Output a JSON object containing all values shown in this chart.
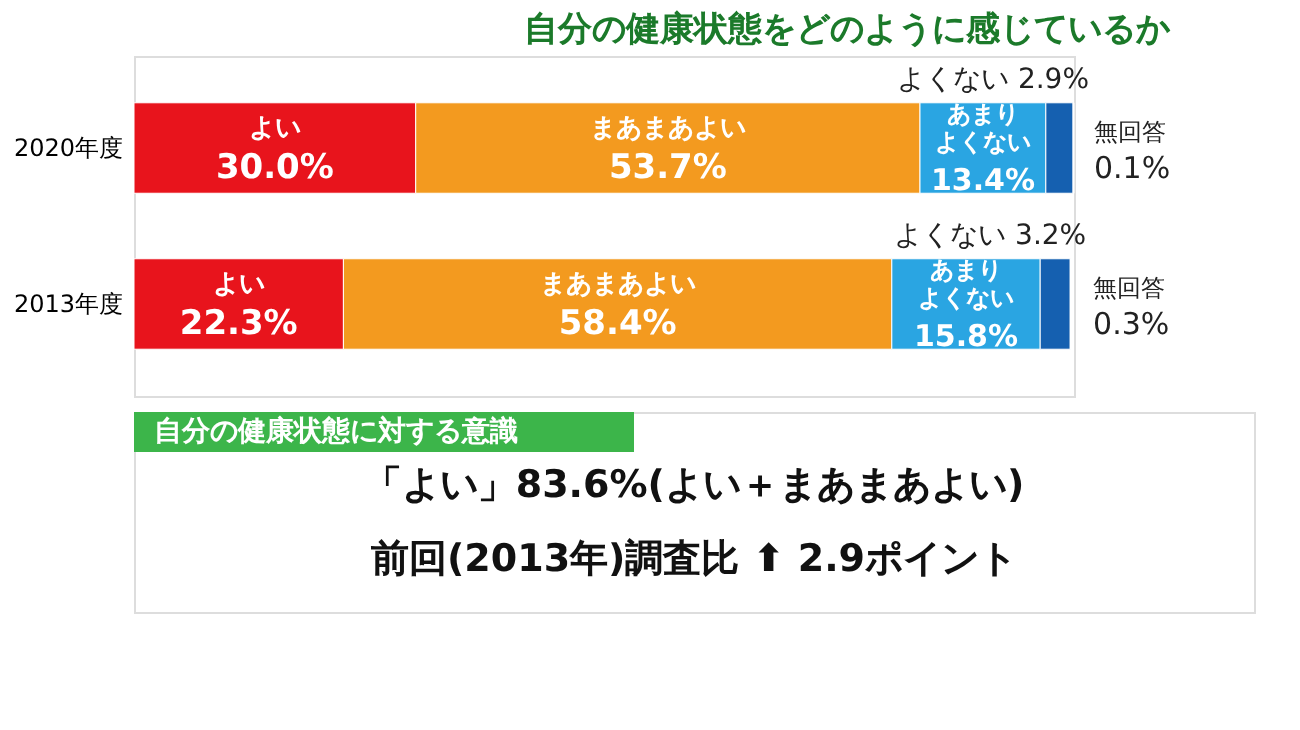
{
  "chart_data": {
    "type": "bar",
    "orientation": "horizontal",
    "stacked": true,
    "title": "自分の健康状態をどのように感じているか",
    "categories": [
      "2020年度",
      "2013年度"
    ],
    "series": [
      {
        "name": "よい",
        "color": "#e8141c",
        "values": [
          30.0,
          22.3
        ],
        "value_labels": [
          "30.0%",
          "22.3%"
        ]
      },
      {
        "name": "まあまあよい",
        "color": "#f39a1f",
        "values": [
          53.7,
          58.4
        ],
        "value_labels": [
          "53.7%",
          "58.4%"
        ]
      },
      {
        "name": "あまりよくない",
        "color": "#2aa5e2",
        "values": [
          13.4,
          15.8
        ],
        "value_labels": [
          "13.4%",
          "15.8%"
        ]
      },
      {
        "name": "よくない",
        "color": "#1560b0",
        "values": [
          2.9,
          3.2
        ],
        "value_labels": [
          "2.9%",
          "3.2%"
        ]
      },
      {
        "name": "無回答",
        "color": "#ffffff",
        "values": [
          0.1,
          0.3
        ],
        "value_labels": [
          "0.1%",
          "0.3%"
        ]
      }
    ],
    "legend": false,
    "annotations": [
      "自分の健康状態に対する意識",
      "「よい」83.6%(よい＋まあまあよい)",
      "前回(2013年)調査比 ⬆ 2.9ポイント"
    ]
  }
}
